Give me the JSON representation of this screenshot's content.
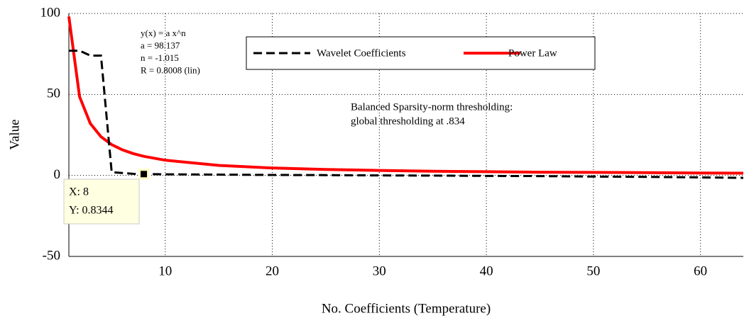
{
  "chart_data": {
    "type": "line",
    "xlabel": "No. Coefficients (Temperature)",
    "ylabel": "Value",
    "x": [
      1,
      2,
      3,
      4,
      5,
      6,
      7,
      8,
      10,
      15,
      20,
      25,
      30,
      35,
      40,
      45,
      50,
      55,
      60,
      64
    ],
    "series": [
      {
        "name": "Wavelet Coefficients",
        "color": "#000000",
        "dash": true,
        "values": [
          77,
          77,
          74,
          74,
          2,
          1.5,
          1,
          0.8344,
          0.7,
          0.5,
          0.3,
          0.2,
          0,
          -0.1,
          -0.3,
          -0.4,
          -0.7,
          -0.9,
          -1.2,
          -1.5
        ]
      },
      {
        "name": "Power Law",
        "color": "#ff0000",
        "dash": false,
        "values": [
          98.1,
          48.6,
          32.1,
          23.9,
          19.0,
          15.8,
          13.5,
          11.8,
          9.4,
          6.2,
          4.6,
          3.7,
          3.1,
          2.6,
          2.3,
          2.0,
          1.9,
          1.7,
          1.5,
          1.4
        ]
      }
    ],
    "xlim": [
      1,
      64
    ],
    "ylim": [
      -50,
      100
    ],
    "xticks": [
      10,
      20,
      30,
      40,
      50,
      60
    ],
    "yticks": [
      -50,
      0,
      50,
      100
    ],
    "grid": true,
    "fit_text": [
      "y(x) = a x^n",
      "a = 98.137",
      "n = -1.015",
      "R = 0.8008  (lin)"
    ],
    "note": [
      "Balanced Sparsity-norm thresholding:",
      "global thresholding at .834"
    ],
    "datatip": {
      "index": 7,
      "lines": [
        "X: 8",
        "Y: 0.8344"
      ]
    }
  }
}
